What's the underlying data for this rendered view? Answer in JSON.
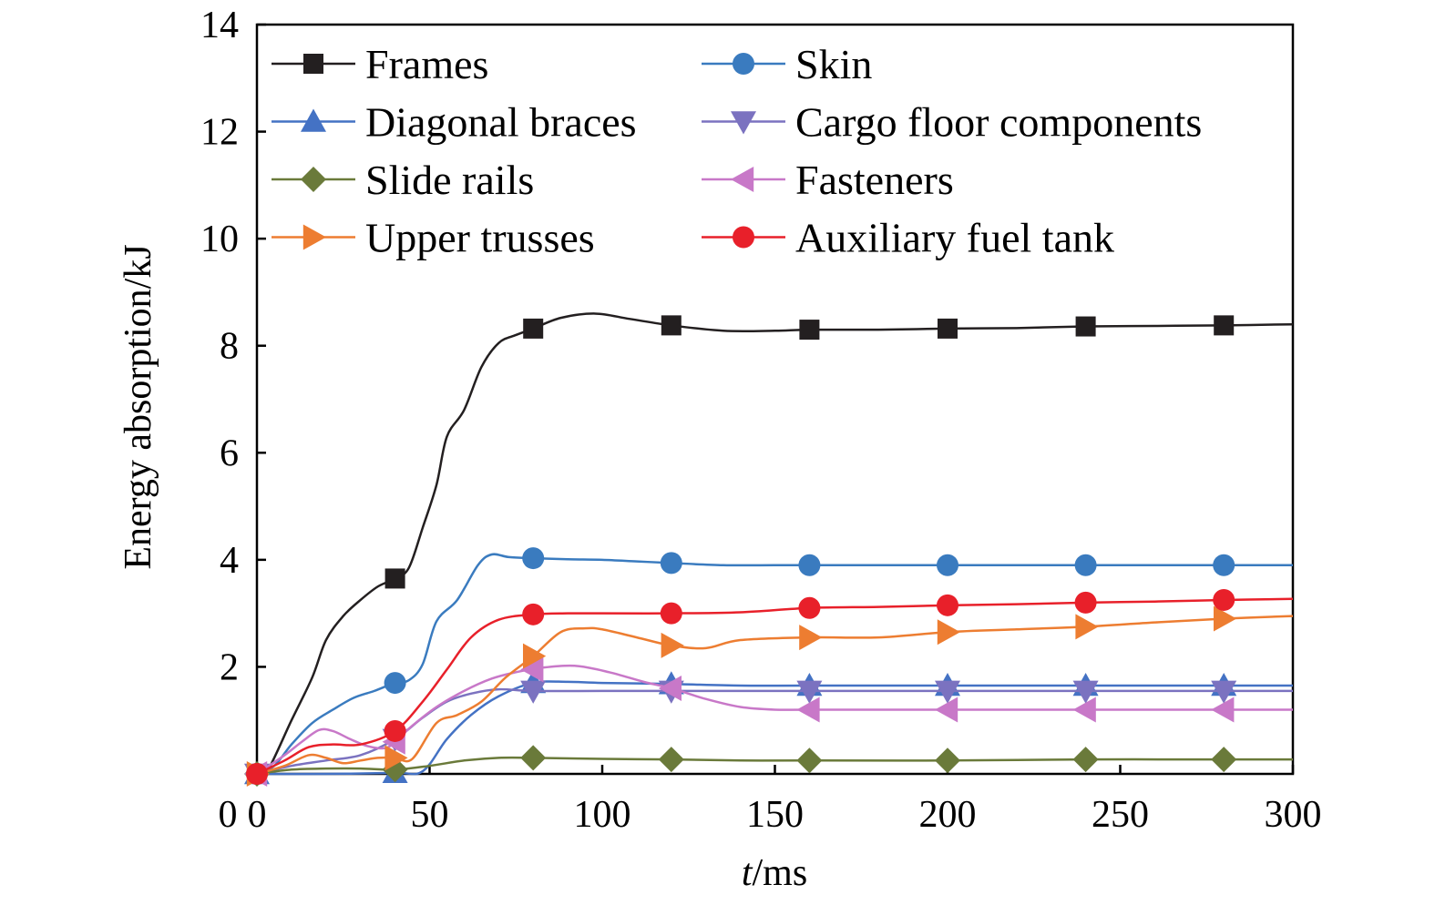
{
  "chart_data": {
    "type": "line",
    "xlabel_italic": "t",
    "xlabel_rest": "/ms",
    "ylabel": "Energy absorption/kJ",
    "xlim": [
      0,
      300
    ],
    "ylim": [
      0,
      14
    ],
    "xticks": [
      0,
      50,
      100,
      150,
      200,
      250,
      300
    ],
    "yticks": [
      2,
      4,
      6,
      8,
      10,
      12,
      14
    ],
    "y_origin_label": "0",
    "grid": false,
    "legend_placement": "top, two columns",
    "series": [
      {
        "name": "Frames",
        "color": "#231f20",
        "marker": "square",
        "points": [
          [
            0,
            0
          ],
          [
            3,
            0.05
          ],
          [
            10,
            1.0
          ],
          [
            16,
            1.8
          ],
          [
            20,
            2.5
          ],
          [
            25,
            2.95
          ],
          [
            30,
            3.25
          ],
          [
            35,
            3.5
          ],
          [
            40,
            3.65
          ],
          [
            44,
            3.85
          ],
          [
            48,
            4.6
          ],
          [
            52,
            5.4
          ],
          [
            55,
            6.3
          ],
          [
            60,
            6.8
          ],
          [
            65,
            7.6
          ],
          [
            70,
            8.05
          ],
          [
            75,
            8.2
          ],
          [
            80,
            8.32
          ],
          [
            88,
            8.52
          ],
          [
            98,
            8.6
          ],
          [
            108,
            8.5
          ],
          [
            120,
            8.38
          ],
          [
            135,
            8.28
          ],
          [
            150,
            8.28
          ],
          [
            160,
            8.3
          ],
          [
            180,
            8.3
          ],
          [
            200,
            8.32
          ],
          [
            220,
            8.33
          ],
          [
            240,
            8.36
          ],
          [
            260,
            8.37
          ],
          [
            280,
            8.38
          ],
          [
            300,
            8.4
          ]
        ],
        "markers": [
          [
            0,
            0
          ],
          [
            40,
            3.65
          ],
          [
            80,
            8.32
          ],
          [
            120,
            8.38
          ],
          [
            160,
            8.3
          ],
          [
            200,
            8.32
          ],
          [
            240,
            8.36
          ],
          [
            280,
            8.38
          ]
        ]
      },
      {
        "name": "Skin",
        "color": "#3a7bbf",
        "marker": "circle",
        "points": [
          [
            0,
            0
          ],
          [
            5,
            0.15
          ],
          [
            10,
            0.55
          ],
          [
            16,
            0.95
          ],
          [
            22,
            1.2
          ],
          [
            28,
            1.42
          ],
          [
            34,
            1.55
          ],
          [
            40,
            1.7
          ],
          [
            44,
            1.75
          ],
          [
            48,
            2.05
          ],
          [
            52,
            2.85
          ],
          [
            58,
            3.25
          ],
          [
            64,
            3.9
          ],
          [
            68,
            4.1
          ],
          [
            73,
            4.05
          ],
          [
            80,
            4.03
          ],
          [
            90,
            4.01
          ],
          [
            100,
            4.0
          ],
          [
            110,
            3.97
          ],
          [
            120,
            3.94
          ],
          [
            135,
            3.9
          ],
          [
            150,
            3.9
          ],
          [
            160,
            3.9
          ],
          [
            200,
            3.9
          ],
          [
            240,
            3.9
          ],
          [
            280,
            3.9
          ],
          [
            300,
            3.9
          ]
        ],
        "markers": [
          [
            0,
            0
          ],
          [
            40,
            1.7
          ],
          [
            80,
            4.03
          ],
          [
            120,
            3.94
          ],
          [
            160,
            3.9
          ],
          [
            200,
            3.9
          ],
          [
            240,
            3.9
          ],
          [
            280,
            3.9
          ]
        ]
      },
      {
        "name": "Diagonal braces",
        "color": "#4472c4",
        "marker": "triangle-up",
        "points": [
          [
            0,
            0
          ],
          [
            20,
            0.0
          ],
          [
            40,
            0.02
          ],
          [
            48,
            0.05
          ],
          [
            55,
            0.65
          ],
          [
            62,
            1.1
          ],
          [
            70,
            1.45
          ],
          [
            80,
            1.7
          ],
          [
            90,
            1.72
          ],
          [
            100,
            1.7
          ],
          [
            120,
            1.68
          ],
          [
            140,
            1.65
          ],
          [
            160,
            1.65
          ],
          [
            200,
            1.65
          ],
          [
            240,
            1.65
          ],
          [
            280,
            1.65
          ],
          [
            300,
            1.65
          ]
        ],
        "markers": [
          [
            0,
            0
          ],
          [
            40,
            0.02
          ],
          [
            80,
            1.7
          ],
          [
            120,
            1.68
          ],
          [
            160,
            1.65
          ],
          [
            200,
            1.65
          ],
          [
            240,
            1.65
          ],
          [
            280,
            1.65
          ]
        ]
      },
      {
        "name": "Cargo floor components",
        "color": "#7b72c0",
        "marker": "triangle-down",
        "points": [
          [
            0,
            0
          ],
          [
            10,
            0.15
          ],
          [
            20,
            0.25
          ],
          [
            30,
            0.35
          ],
          [
            40,
            0.65
          ],
          [
            48,
            1.05
          ],
          [
            55,
            1.35
          ],
          [
            62,
            1.5
          ],
          [
            70,
            1.58
          ],
          [
            80,
            1.55
          ],
          [
            100,
            1.55
          ],
          [
            120,
            1.55
          ],
          [
            160,
            1.55
          ],
          [
            200,
            1.55
          ],
          [
            240,
            1.55
          ],
          [
            280,
            1.55
          ],
          [
            300,
            1.55
          ]
        ],
        "markers": [
          [
            0,
            0
          ],
          [
            40,
            0.65
          ],
          [
            80,
            1.55
          ],
          [
            120,
            1.55
          ],
          [
            160,
            1.55
          ],
          [
            200,
            1.55
          ],
          [
            240,
            1.55
          ],
          [
            280,
            1.55
          ]
        ]
      },
      {
        "name": "Slide rails",
        "color": "#6a7a3a",
        "marker": "diamond",
        "points": [
          [
            0,
            0
          ],
          [
            10,
            0.08
          ],
          [
            20,
            0.1
          ],
          [
            30,
            0.1
          ],
          [
            40,
            0.08
          ],
          [
            50,
            0.15
          ],
          [
            60,
            0.25
          ],
          [
            70,
            0.3
          ],
          [
            80,
            0.3
          ],
          [
            100,
            0.28
          ],
          [
            120,
            0.27
          ],
          [
            140,
            0.25
          ],
          [
            160,
            0.25
          ],
          [
            200,
            0.25
          ],
          [
            240,
            0.27
          ],
          [
            280,
            0.27
          ],
          [
            300,
            0.27
          ]
        ],
        "markers": [
          [
            0,
            0
          ],
          [
            40,
            0.08
          ],
          [
            80,
            0.3
          ],
          [
            120,
            0.27
          ],
          [
            160,
            0.25
          ],
          [
            200,
            0.25
          ],
          [
            240,
            0.27
          ],
          [
            280,
            0.27
          ]
        ]
      },
      {
        "name": "Fasteners",
        "color": "#c878c8",
        "marker": "triangle-left",
        "points": [
          [
            0,
            0
          ],
          [
            8,
            0.35
          ],
          [
            13,
            0.6
          ],
          [
            18,
            0.82
          ],
          [
            22,
            0.8
          ],
          [
            27,
            0.65
          ],
          [
            32,
            0.52
          ],
          [
            37,
            0.48
          ],
          [
            40,
            0.6
          ],
          [
            45,
            0.9
          ],
          [
            52,
            1.25
          ],
          [
            60,
            1.55
          ],
          [
            68,
            1.78
          ],
          [
            75,
            1.9
          ],
          [
            82,
            1.98
          ],
          [
            92,
            2.02
          ],
          [
            102,
            1.9
          ],
          [
            112,
            1.72
          ],
          [
            120,
            1.6
          ],
          [
            130,
            1.4
          ],
          [
            140,
            1.25
          ],
          [
            150,
            1.2
          ],
          [
            160,
            1.2
          ],
          [
            200,
            1.2
          ],
          [
            240,
            1.2
          ],
          [
            280,
            1.2
          ],
          [
            300,
            1.2
          ]
        ],
        "markers": [
          [
            0,
            0
          ],
          [
            40,
            0.6
          ],
          [
            80,
            1.95
          ],
          [
            120,
            1.6
          ],
          [
            160,
            1.2
          ],
          [
            200,
            1.2
          ],
          [
            240,
            1.2
          ],
          [
            280,
            1.2
          ]
        ]
      },
      {
        "name": "Upper trusses",
        "color": "#ed7d31",
        "marker": "triangle-right",
        "points": [
          [
            0,
            0
          ],
          [
            8,
            0.15
          ],
          [
            15,
            0.35
          ],
          [
            20,
            0.3
          ],
          [
            25,
            0.2
          ],
          [
            30,
            0.25
          ],
          [
            35,
            0.3
          ],
          [
            40,
            0.3
          ],
          [
            45,
            0.28
          ],
          [
            52,
            0.95
          ],
          [
            58,
            1.1
          ],
          [
            65,
            1.35
          ],
          [
            72,
            1.8
          ],
          [
            80,
            2.2
          ],
          [
            88,
            2.65
          ],
          [
            95,
            2.72
          ],
          [
            100,
            2.7
          ],
          [
            110,
            2.55
          ],
          [
            120,
            2.4
          ],
          [
            130,
            2.35
          ],
          [
            140,
            2.5
          ],
          [
            160,
            2.55
          ],
          [
            180,
            2.55
          ],
          [
            200,
            2.65
          ],
          [
            220,
            2.7
          ],
          [
            240,
            2.75
          ],
          [
            260,
            2.83
          ],
          [
            280,
            2.9
          ],
          [
            300,
            2.95
          ]
        ],
        "markers": [
          [
            0,
            0
          ],
          [
            40,
            0.3
          ],
          [
            80,
            2.2
          ],
          [
            120,
            2.4
          ],
          [
            160,
            2.55
          ],
          [
            200,
            2.65
          ],
          [
            240,
            2.75
          ],
          [
            280,
            2.9
          ]
        ]
      },
      {
        "name": "Auxiliary fuel tank",
        "color": "#e8202a",
        "marker": "circle",
        "points": [
          [
            0,
            0
          ],
          [
            8,
            0.25
          ],
          [
            15,
            0.5
          ],
          [
            22,
            0.55
          ],
          [
            30,
            0.55
          ],
          [
            40,
            0.8
          ],
          [
            48,
            1.35
          ],
          [
            55,
            1.95
          ],
          [
            62,
            2.55
          ],
          [
            70,
            2.88
          ],
          [
            80,
            2.98
          ],
          [
            90,
            3.0
          ],
          [
            100,
            3.0
          ],
          [
            120,
            3.0
          ],
          [
            140,
            3.02
          ],
          [
            160,
            3.1
          ],
          [
            180,
            3.12
          ],
          [
            200,
            3.15
          ],
          [
            220,
            3.17
          ],
          [
            240,
            3.2
          ],
          [
            260,
            3.22
          ],
          [
            280,
            3.25
          ],
          [
            300,
            3.27
          ]
        ],
        "markers": [
          [
            0,
            0
          ],
          [
            40,
            0.8
          ],
          [
            80,
            2.98
          ],
          [
            120,
            3.0
          ],
          [
            160,
            3.1
          ],
          [
            200,
            3.15
          ],
          [
            240,
            3.2
          ],
          [
            280,
            3.25
          ]
        ]
      }
    ]
  }
}
